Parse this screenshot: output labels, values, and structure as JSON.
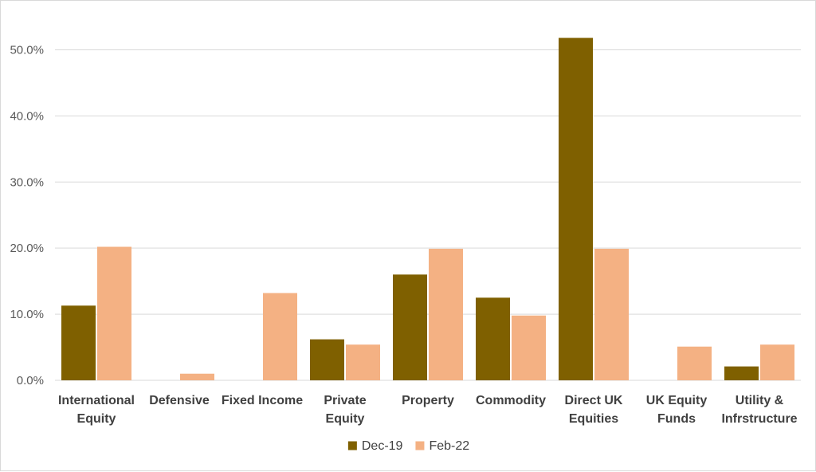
{
  "chart_data": {
    "type": "bar",
    "title": "",
    "xlabel": "",
    "ylabel": "",
    "ylim": [
      0,
      0.55
    ],
    "yticks": [
      {
        "value": 0.0,
        "label": "0.0%"
      },
      {
        "value": 0.1,
        "label": "10.0%"
      },
      {
        "value": 0.2,
        "label": "20.0%"
      },
      {
        "value": 0.3,
        "label": "30.0%"
      },
      {
        "value": 0.4,
        "label": "40.0%"
      },
      {
        "value": 0.5,
        "label": "50.0%"
      }
    ],
    "grid": true,
    "legend_position": "bottom",
    "categories": [
      [
        "International",
        "Equity"
      ],
      [
        "Defensive"
      ],
      [
        "Fixed Income"
      ],
      [
        "Private",
        "Equity"
      ],
      [
        "Property"
      ],
      [
        "Commodity"
      ],
      [
        "Direct UK",
        "Equities"
      ],
      [
        "UK Equity",
        "Funds"
      ],
      [
        "Utility &",
        "Infrstructure"
      ]
    ],
    "series": [
      {
        "name": "Dec-19",
        "color": "#7f6000",
        "values": [
          0.113,
          0.0,
          0.0,
          0.062,
          0.16,
          0.125,
          0.518,
          0.0,
          0.021
        ]
      },
      {
        "name": "Feb-22",
        "color": "#f4b183",
        "values": [
          0.202,
          0.01,
          0.132,
          0.054,
          0.199,
          0.098,
          0.199,
          0.051,
          0.054
        ]
      }
    ]
  }
}
